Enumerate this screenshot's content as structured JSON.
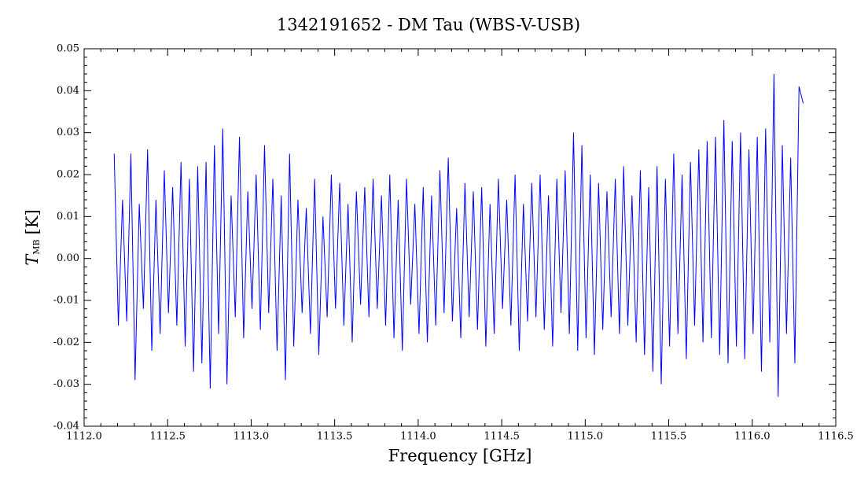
{
  "chart_data": {
    "type": "line",
    "title": "1342191652 - DM Tau (WBS-V-USB)",
    "xlabel": "Frequency [GHz]",
    "ylabel": {
      "symbol": "T",
      "subscript": "MB",
      "unit": "[K]"
    },
    "color": "#0000ff",
    "xlim": [
      1112.0,
      1116.5
    ],
    "ylim": [
      -0.04,
      0.05
    ],
    "xticks": [
      {
        "value": 1112,
        "label": "1112.0"
      },
      1112.5,
      {
        "value": 1113,
        "label": "1113.0"
      },
      1113.5,
      {
        "value": 1114,
        "label": "1114.0"
      },
      1114.5,
      {
        "value": 1115,
        "label": "1115.0"
      },
      1115.5,
      {
        "value": 1116,
        "label": "1116.0"
      },
      1116.5
    ],
    "yticks": [
      -0.04,
      -0.03,
      -0.02,
      -0.01,
      {
        "value": 0,
        "label": "0.00"
      },
      0.01,
      0.02,
      0.03,
      0.04,
      0.05
    ],
    "x": [
      1112.18,
      1112.205,
      1112.23,
      1112.255,
      1112.28,
      1112.305,
      1112.33,
      1112.355,
      1112.38,
      1112.405,
      1112.43,
      1112.455,
      1112.48,
      1112.505,
      1112.53,
      1112.555,
      1112.58,
      1112.605,
      1112.63,
      1112.655,
      1112.68,
      1112.705,
      1112.73,
      1112.755,
      1112.78,
      1112.805,
      1112.83,
      1112.855,
      1112.88,
      1112.905,
      1112.93,
      1112.955,
      1112.98,
      1113.005,
      1113.03,
      1113.055,
      1113.08,
      1113.105,
      1113.13,
      1113.155,
      1113.18,
      1113.205,
      1113.23,
      1113.255,
      1113.28,
      1113.305,
      1113.33,
      1113.355,
      1113.38,
      1113.405,
      1113.43,
      1113.455,
      1113.48,
      1113.505,
      1113.53,
      1113.555,
      1113.58,
      1113.605,
      1113.63,
      1113.655,
      1113.68,
      1113.705,
      1113.73,
      1113.755,
      1113.78,
      1113.805,
      1113.83,
      1113.855,
      1113.88,
      1113.905,
      1113.93,
      1113.955,
      1113.98,
      1114.005,
      1114.03,
      1114.055,
      1114.08,
      1114.105,
      1114.13,
      1114.155,
      1114.18,
      1114.205,
      1114.23,
      1114.255,
      1114.28,
      1114.305,
      1114.33,
      1114.355,
      1114.38,
      1114.405,
      1114.43,
      1114.455,
      1114.48,
      1114.505,
      1114.53,
      1114.555,
      1114.58,
      1114.605,
      1114.63,
      1114.655,
      1114.68,
      1114.705,
      1114.73,
      1114.755,
      1114.78,
      1114.805,
      1114.83,
      1114.855,
      1114.88,
      1114.905,
      1114.93,
      1114.955,
      1114.98,
      1115.005,
      1115.03,
      1115.055,
      1115.08,
      1115.105,
      1115.13,
      1115.155,
      1115.18,
      1115.205,
      1115.23,
      1115.255,
      1115.28,
      1115.305,
      1115.33,
      1115.355,
      1115.38,
      1115.405,
      1115.43,
      1115.455,
      1115.48,
      1115.505,
      1115.53,
      1115.555,
      1115.58,
      1115.605,
      1115.63,
      1115.655,
      1115.68,
      1115.705,
      1115.73,
      1115.755,
      1115.78,
      1115.805,
      1115.83,
      1115.855,
      1115.88,
      1115.905,
      1115.93,
      1115.955,
      1115.98,
      1116.005,
      1116.03,
      1116.055,
      1116.08,
      1116.105,
      1116.13,
      1116.155,
      1116.18,
      1116.205,
      1116.23,
      1116.255,
      1116.28,
      1116.305
    ],
    "values": [
      0.025,
      -0.016,
      0.014,
      -0.015,
      0.025,
      -0.029,
      0.013,
      -0.012,
      0.026,
      -0.022,
      0.014,
      -0.018,
      0.021,
      -0.013,
      0.017,
      -0.016,
      0.023,
      -0.021,
      0.019,
      -0.027,
      0.022,
      -0.025,
      0.023,
      -0.031,
      0.027,
      -0.018,
      0.031,
      -0.03,
      0.015,
      -0.014,
      0.029,
      -0.019,
      0.016,
      -0.012,
      0.02,
      -0.017,
      0.027,
      -0.013,
      0.019,
      -0.022,
      0.015,
      -0.029,
      0.025,
      -0.021,
      0.014,
      -0.013,
      0.012,
      -0.018,
      0.019,
      -0.023,
      0.01,
      -0.014,
      0.02,
      -0.012,
      0.018,
      -0.016,
      0.013,
      -0.02,
      0.016,
      -0.011,
      0.017,
      -0.014,
      0.019,
      -0.012,
      0.015,
      -0.016,
      0.02,
      -0.019,
      0.014,
      -0.022,
      0.019,
      -0.011,
      0.013,
      -0.018,
      0.017,
      -0.02,
      0.015,
      -0.016,
      0.021,
      -0.013,
      0.024,
      -0.015,
      0.012,
      -0.019,
      0.018,
      -0.014,
      0.016,
      -0.017,
      0.017,
      -0.021,
      0.013,
      -0.018,
      0.019,
      -0.012,
      0.014,
      -0.016,
      0.02,
      -0.022,
      0.013,
      -0.015,
      0.018,
      -0.014,
      0.02,
      -0.017,
      0.015,
      -0.021,
      0.019,
      -0.013,
      0.021,
      -0.018,
      0.03,
      -0.022,
      0.027,
      -0.019,
      0.02,
      -0.023,
      0.018,
      -0.017,
      0.016,
      -0.014,
      0.019,
      -0.018,
      0.022,
      -0.016,
      0.015,
      -0.02,
      0.021,
      -0.023,
      0.017,
      -0.027,
      0.022,
      -0.03,
      0.019,
      -0.021,
      0.025,
      -0.018,
      0.02,
      -0.024,
      0.023,
      -0.016,
      0.026,
      -0.02,
      0.028,
      -0.019,
      0.029,
      -0.023,
      0.033,
      -0.025,
      0.028,
      -0.021,
      0.03,
      -0.024,
      0.026,
      -0.018,
      0.029,
      -0.027,
      0.031,
      -0.02,
      0.044,
      -0.033,
      0.027,
      -0.018,
      0.024,
      -0.025,
      0.041,
      0.037
    ]
  }
}
